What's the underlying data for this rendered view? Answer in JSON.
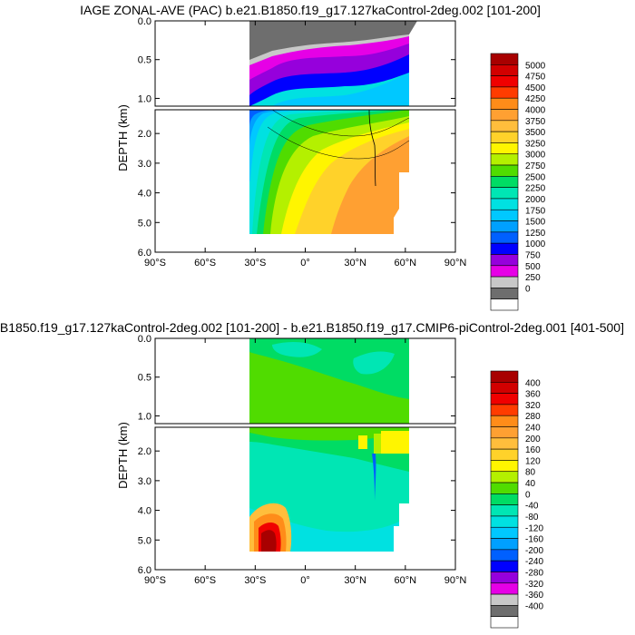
{
  "chart_data": [
    {
      "type": "contour",
      "title": "IAGE ZONAL-AVE (PAC) b.e21.B1850.f19_g17.127kaControl-2deg.002 [101-200]",
      "xlabel": "",
      "ylabel": "DEPTH (km)",
      "xlim": [
        -90,
        90
      ],
      "x_ticks": [
        "90°S",
        "60°S",
        "30°S",
        "0°",
        "30°N",
        "60°N",
        "90°N"
      ],
      "y_ticks_upper": [
        "0.0",
        "0.5",
        "1.0"
      ],
      "y_ticks_lower": [
        "2.0",
        "3.0",
        "4.0",
        "5.0",
        "6.0"
      ],
      "ylim_upper_km": [
        0,
        1.1
      ],
      "ylim_lower_km": [
        1.2,
        6.0
      ],
      "data_lat_range": [
        -33,
        62
      ],
      "colorbar_levels": [
        "5000",
        "4750",
        "4500",
        "4250",
        "4000",
        "3750",
        "3500",
        "3250",
        "3000",
        "2750",
        "2500",
        "2250",
        "2000",
        "1750",
        "1500",
        "1250",
        "1000",
        "750",
        "500",
        "250",
        "0"
      ],
      "colorbar_colors": [
        "#a80000",
        "#d20000",
        "#f00000",
        "#ff3c00",
        "#ff8c19",
        "#ffa032",
        "#ffbe3c",
        "#ffd22a",
        "#fff500",
        "#b4f000",
        "#50dc00",
        "#00dc64",
        "#00e6b4",
        "#00e1e1",
        "#00c8ff",
        "#00a0ff",
        "#0060ff",
        "#0000ff",
        "#9600dc",
        "#e600e6",
        "#c8c8c8",
        "#6e6e6e",
        "#ffffff"
      ]
    },
    {
      "type": "contour",
      "title": ".B1850.f19_g17.127kaControl-2deg.002 [101-200] - b.e21.B1850.f19_g17.CMIP6-piControl-2deg.001 [401-500]",
      "xlabel": "",
      "ylabel": "DEPTH (km)",
      "xlim": [
        -90,
        90
      ],
      "x_ticks": [
        "90°S",
        "60°S",
        "30°S",
        "0°",
        "30°N",
        "60°N",
        "90°N"
      ],
      "y_ticks_upper": [
        "0.0",
        "0.5",
        "1.0"
      ],
      "y_ticks_lower": [
        "2.0",
        "3.0",
        "4.0",
        "5.0",
        "6.0"
      ],
      "ylim_upper_km": [
        0,
        1.1
      ],
      "ylim_lower_km": [
        1.2,
        6.0
      ],
      "data_lat_range": [
        -33,
        62
      ],
      "colorbar_levels": [
        "400",
        "360",
        "320",
        "280",
        "240",
        "200",
        "160",
        "120",
        "80",
        "40",
        "0",
        "-40",
        "-80",
        "-120",
        "-160",
        "-200",
        "-240",
        "-280",
        "-320",
        "-360",
        "-400"
      ],
      "colorbar_colors": [
        "#a80000",
        "#d20000",
        "#f00000",
        "#ff3c00",
        "#ff8c19",
        "#ffa032",
        "#ffbe3c",
        "#ffd22a",
        "#fff500",
        "#b4f000",
        "#50dc00",
        "#00dc64",
        "#00e6b4",
        "#00e1e1",
        "#00c8ff",
        "#00a0ff",
        "#0060ff",
        "#0000ff",
        "#9600dc",
        "#e600e6",
        "#c8c8c8",
        "#6e6e6e",
        "#ffffff"
      ]
    }
  ]
}
